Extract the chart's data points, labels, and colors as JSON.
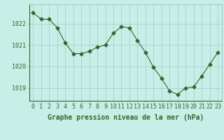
{
  "hours": [
    0,
    1,
    2,
    3,
    4,
    5,
    6,
    7,
    8,
    9,
    10,
    11,
    12,
    13,
    14,
    15,
    16,
    17,
    18,
    19,
    20,
    21,
    22,
    23
  ],
  "pressure": [
    1022.5,
    1022.2,
    1022.2,
    1021.8,
    1021.1,
    1020.6,
    1020.6,
    1020.7,
    1020.9,
    1021.0,
    1021.55,
    1021.85,
    1021.8,
    1021.2,
    1020.65,
    1019.95,
    1019.45,
    1018.85,
    1018.7,
    1019.0,
    1019.05,
    1019.55,
    1020.1,
    1020.65
  ],
  "line_color": "#2d6a2d",
  "marker": "D",
  "marker_size": 2.5,
  "bg_color": "#c8eee8",
  "grid_color": "#a0ccc8",
  "xlabel": "Graphe pression niveau de la mer (hPa)",
  "xlabel_fontsize": 7,
  "ylabel_ticks": [
    1019,
    1020,
    1021,
    1022
  ],
  "ylim": [
    1018.4,
    1022.9
  ],
  "xlim": [
    -0.5,
    23.5
  ],
  "tick_fontsize": 6,
  "line_color_dark": "#2d6a2d"
}
